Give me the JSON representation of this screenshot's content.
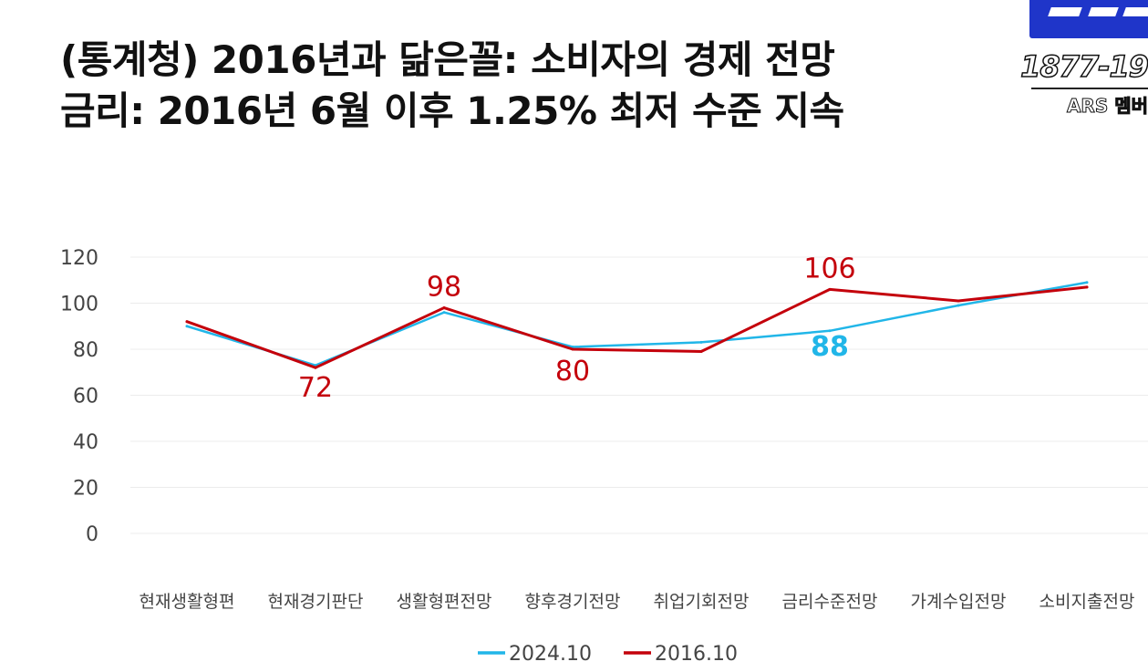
{
  "header": {
    "title_line1": "(통계청) 2016년과 닮은꼴: 소비자의 경제 전망",
    "title_line2": "금리: 2016년 6월 이후 1.25% 최저 수준 지속"
  },
  "brand": {
    "phone": "1877-19",
    "ars_label": "ARS 멤버",
    "logo_color": "#1f35c9"
  },
  "chart_data": {
    "type": "line",
    "title": "",
    "xlabel": "",
    "ylabel": "",
    "categories": [
      "현재생활형편",
      "현재경기판단",
      "생활형편전망",
      "향후경기전망",
      "취업기회전망",
      "금리수준전망",
      "가계수입전망",
      "소비지출전망"
    ],
    "ylim": [
      0,
      120
    ],
    "yticks": [
      0,
      20,
      40,
      60,
      80,
      100,
      120
    ],
    "grid": true,
    "legend_position": "bottom",
    "series": [
      {
        "name": "2024.10",
        "color": "#21b6e8",
        "values": [
          90,
          73,
          96,
          81,
          83,
          88,
          99,
          109
        ],
        "labels": [
          null,
          null,
          null,
          null,
          null,
          "88",
          null,
          null
        ]
      },
      {
        "name": "2016.10",
        "color": "#c4000b",
        "values": [
          92,
          72,
          98,
          80,
          79,
          106,
          101,
          107
        ],
        "labels": [
          null,
          "72",
          "98",
          "80",
          null,
          "106",
          null,
          null
        ]
      }
    ]
  }
}
